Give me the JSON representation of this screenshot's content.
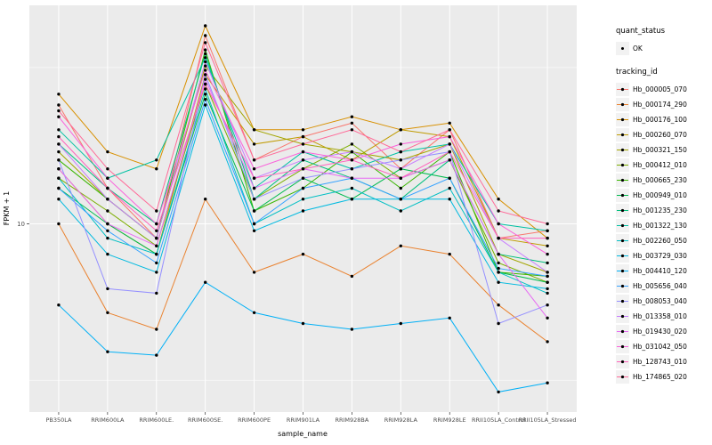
{
  "chart_data": {
    "type": "line",
    "title": "",
    "xlabel": "sample_name",
    "ylabel": "FPKM + 1",
    "y_scale": "log10",
    "ylim": [
      2.5,
      50
    ],
    "y_tick_labels": [
      "10"
    ],
    "y_tick_values": [
      10
    ],
    "y_minor_tick_values": [
      3.162,
      31.62
    ],
    "grid": true,
    "panel_bg": "#EBEBEB",
    "grid_color": "#FFFFFF",
    "axis_text_color": "#4D4D4D",
    "point_color": "#000000",
    "legend_position": "right",
    "categories": [
      "PB350LA",
      "RRIM600LA",
      "RRIM600LE.",
      "RRIM600SE.",
      "RRIM600PE",
      "RRIM901LA",
      "RRIM928BA",
      "RRIM928LA",
      "RRIM928LE",
      "RRII105LA_Control",
      "RRII105LA_Stressed"
    ],
    "series": [
      {
        "name": "Hb_000005_070",
        "color": "#F8766D",
        "values": [
          24,
          13,
          9,
          40,
          16,
          19,
          21,
          15,
          20,
          9,
          9.5
        ]
      },
      {
        "name": "Hb_000174_290",
        "color": "#EA8331",
        "values": [
          10,
          5.2,
          4.6,
          12,
          7,
          8,
          6.8,
          8.5,
          8,
          5.5,
          4.2
        ]
      },
      {
        "name": "Hb_000176_100",
        "color": "#D89000",
        "values": [
          26,
          17,
          15,
          43,
          20,
          20,
          22,
          20,
          21,
          12,
          9
        ]
      },
      {
        "name": "Hb_000260_070",
        "color": "#C09B00",
        "values": [
          15,
          10,
          8,
          30,
          18,
          19,
          16,
          20,
          19,
          9,
          8.5
        ]
      },
      {
        "name": "Hb_000321_150",
        "color": "#A3A500",
        "values": [
          17,
          12,
          9,
          32,
          20,
          18,
          17,
          16,
          18,
          8,
          7
        ]
      },
      {
        "name": "Hb_000412_010",
        "color": "#7CAE00",
        "values": [
          14,
          11,
          8.5,
          28,
          12,
          15,
          18,
          14,
          16,
          7.5,
          6.5
        ]
      },
      {
        "name": "Hb_000665_230",
        "color": "#39B600",
        "values": [
          16,
          12,
          9,
          36,
          11,
          13,
          17,
          13,
          17,
          7,
          6.8
        ]
      },
      {
        "name": "Hb_000949_010",
        "color": "#00BB4E",
        "values": [
          13,
          10,
          8,
          26,
          11,
          14,
          12,
          15,
          14,
          7,
          6.5
        ]
      },
      {
        "name": "Hb_001235_230",
        "color": "#00BF7D",
        "values": [
          18,
          13,
          10,
          35,
          12,
          16,
          14,
          12,
          16,
          8,
          7.5
        ]
      },
      {
        "name": "Hb_001322_130",
        "color": "#00C1A3",
        "values": [
          20,
          14,
          16,
          34,
          13,
          17,
          15,
          17,
          18,
          10,
          9.5
        ]
      },
      {
        "name": "Hb_002260_050",
        "color": "#00BFC4",
        "values": [
          14,
          9,
          8,
          27,
          10,
          12,
          13,
          11,
          13,
          7,
          6
        ]
      },
      {
        "name": "Hb_003729_030",
        "color": "#00BAE0",
        "values": [
          12,
          8,
          7,
          24,
          9.5,
          11,
          12,
          12,
          12,
          6.5,
          6.2
        ]
      },
      {
        "name": "Hb_004410_120",
        "color": "#00B0F6",
        "values": [
          5.5,
          3.9,
          3.8,
          6.5,
          5.2,
          4.8,
          4.6,
          4.8,
          5.0,
          2.9,
          3.1
        ]
      },
      {
        "name": "Hb_005656_040",
        "color": "#35A2FF",
        "values": [
          13,
          9.5,
          7.5,
          25,
          10,
          13,
          14,
          12,
          14,
          7.2,
          6.8
        ]
      },
      {
        "name": "Hb_008053_040",
        "color": "#9590FF",
        "values": [
          16,
          6.2,
          6.0,
          30,
          12,
          14,
          15,
          16,
          17,
          4.8,
          5.5
        ]
      },
      {
        "name": "Hb_013358_010",
        "color": "#C77CFF",
        "values": [
          18,
          12,
          9,
          33,
          14,
          16,
          17,
          15,
          18,
          9,
          7
        ]
      },
      {
        "name": "Hb_019430_020",
        "color": "#E76BF3",
        "values": [
          15,
          10,
          8.5,
          29,
          13,
          15,
          14,
          14,
          16,
          8,
          5
        ]
      },
      {
        "name": "Hb_031042_050",
        "color": "#FA62DB",
        "values": [
          22,
          14,
          10,
          31,
          15,
          17,
          16,
          18,
          19,
          10,
          8
        ]
      },
      {
        "name": "Hb_128743_010",
        "color": "#FF62BC",
        "values": [
          19,
          13,
          9.5,
          28,
          14,
          15,
          16,
          14,
          17,
          9,
          9
        ]
      },
      {
        "name": "Hb_174865_020",
        "color": "#FF6A98",
        "values": [
          23,
          15,
          11,
          38,
          16,
          18,
          20,
          17,
          20,
          11,
          10
        ]
      }
    ]
  },
  "legend": {
    "quant_title": "quant_status",
    "quant_items": [
      {
        "label": "OK"
      }
    ],
    "tracking_title": "tracking_id",
    "key_bg": "#F2F2F2"
  }
}
